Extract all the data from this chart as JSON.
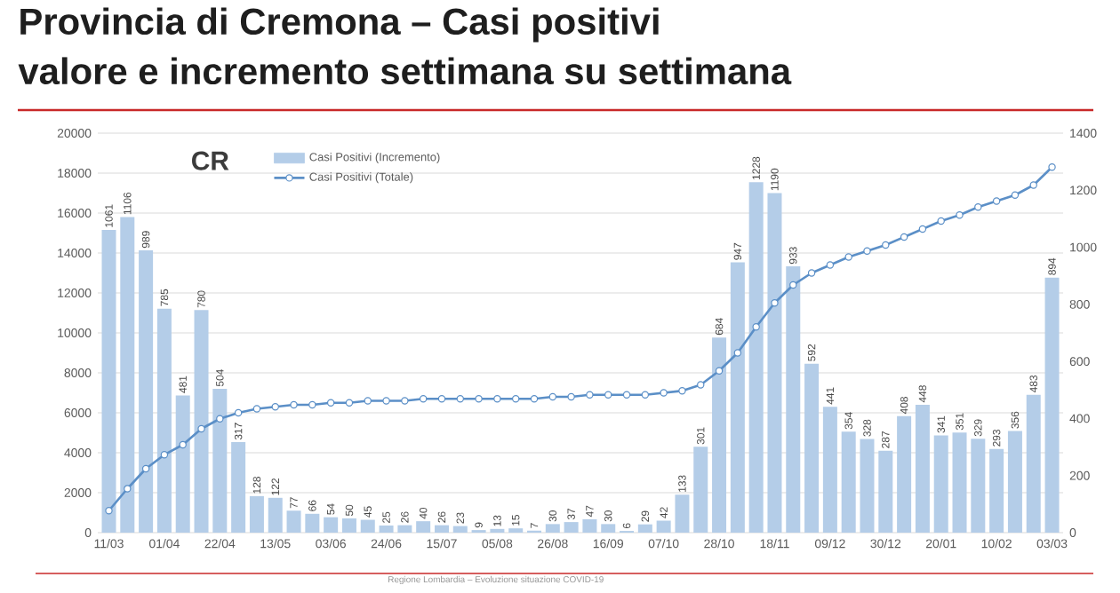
{
  "chart_data": {
    "type": "bar",
    "title": "Provincia di Cremona – Casi positivi",
    "subtitle": "valore e incremento settimana su settimana",
    "annotations": [
      "CR",
      "Regione Lombardia – Evoluzione situazione COVID-19"
    ],
    "categories": [
      "11/03",
      null,
      null,
      "01/04",
      null,
      null,
      "22/04",
      null,
      null,
      "13/05",
      null,
      null,
      "03/06",
      null,
      null,
      "24/06",
      null,
      null,
      "15/07",
      null,
      null,
      "05/08",
      null,
      null,
      "26/08",
      null,
      null,
      "16/09",
      null,
      null,
      "07/10",
      null,
      null,
      "28/10",
      null,
      null,
      "18/11",
      null,
      null,
      "09/12",
      null,
      null,
      "30/12",
      null,
      null,
      "20/01",
      null,
      null,
      "10/02",
      null,
      null,
      "03/03"
    ],
    "series": [
      {
        "name": "Casi Positivi (Incremento)",
        "axis": "y2",
        "color": "#b4cde8",
        "values": [
          1061,
          1106,
          989,
          785,
          481,
          780,
          504,
          317,
          128,
          122,
          77,
          66,
          54,
          50,
          45,
          25,
          26,
          40,
          26,
          23,
          9,
          13,
          15,
          7,
          30,
          37,
          47,
          30,
          6,
          29,
          42,
          133,
          301,
          684,
          947,
          1228,
          1190,
          933,
          592,
          441,
          354,
          328,
          287,
          408,
          448,
          341,
          351,
          329,
          293,
          356,
          483,
          894
        ],
        "value_labels": [
          "1061",
          "1106",
          "989",
          "785",
          "481",
          "780",
          "504",
          "317",
          "128",
          "122",
          "77",
          "66",
          "54",
          "50",
          "45",
          "25",
          "26",
          "40",
          "26",
          "23",
          "9",
          "13",
          "15",
          "7",
          "30",
          "37",
          "47",
          "30",
          "6",
          "29",
          "42",
          "133",
          "301",
          "684",
          "947",
          "1228",
          "1190",
          "933",
          "592",
          "441",
          "354",
          "328",
          "287",
          "408",
          "448",
          "341",
          "351",
          "329",
          "293",
          "356",
          "483",
          "894"
        ]
      },
      {
        "name": "Casi Positivi (Totale)",
        "type": "line",
        "axis": "y",
        "color": "#5b8fc7",
        "marker": "circle",
        "values": [
          1100,
          2200,
          3200,
          3900,
          4400,
          5200,
          5700,
          6000,
          6200,
          6300,
          6400,
          6400,
          6500,
          6500,
          6600,
          6600,
          6600,
          6700,
          6700,
          6700,
          6700,
          6700,
          6700,
          6700,
          6800,
          6800,
          6900,
          6900,
          6900,
          6900,
          7000,
          7100,
          7400,
          8100,
          9000,
          10300,
          11500,
          12400,
          13000,
          13400,
          13800,
          14100,
          14400,
          14800,
          15200,
          15600,
          15900,
          16300,
          16600,
          16900,
          17400,
          18300
        ]
      }
    ],
    "ylim": [
      0,
      20000
    ],
    "yticks": [
      0,
      2000,
      4000,
      6000,
      8000,
      10000,
      12000,
      14000,
      16000,
      18000,
      20000
    ],
    "y2lim": [
      0,
      1400
    ],
    "y2ticks": [
      0,
      200,
      400,
      600,
      800,
      1000,
      1200,
      1400
    ],
    "grid": "y",
    "legend": "top"
  }
}
